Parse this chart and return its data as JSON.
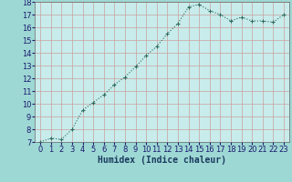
{
  "x": [
    0,
    1,
    2,
    3,
    4,
    5,
    6,
    7,
    8,
    9,
    10,
    11,
    12,
    13,
    14,
    15,
    16,
    17,
    18,
    19,
    20,
    21,
    22,
    23
  ],
  "y": [
    7.0,
    7.3,
    7.2,
    8.0,
    9.5,
    10.1,
    10.7,
    11.5,
    12.1,
    12.9,
    13.8,
    14.5,
    15.5,
    16.3,
    17.6,
    17.8,
    17.3,
    17.0,
    16.5,
    16.8,
    16.5,
    16.5,
    16.4,
    17.0
  ],
  "line_color": "#2e6b5e",
  "bg_color": "#9ed8d4",
  "plot_bg_color": "#c8eceb",
  "grid_color_major": "#b0b0b0",
  "grid_color_minor": "#d0d0d0",
  "xlabel": "Humidex (Indice chaleur)",
  "ylim": [
    7,
    18
  ],
  "xlim": [
    -0.5,
    23.5
  ],
  "yticks": [
    7,
    8,
    9,
    10,
    11,
    12,
    13,
    14,
    15,
    16,
    17,
    18
  ],
  "xticks": [
    0,
    1,
    2,
    3,
    4,
    5,
    6,
    7,
    8,
    9,
    10,
    11,
    12,
    13,
    14,
    15,
    16,
    17,
    18,
    19,
    20,
    21,
    22,
    23
  ],
  "marker": "+",
  "markersize": 3.5,
  "linewidth": 0.8,
  "xlabel_fontsize": 7,
  "tick_fontsize": 6
}
